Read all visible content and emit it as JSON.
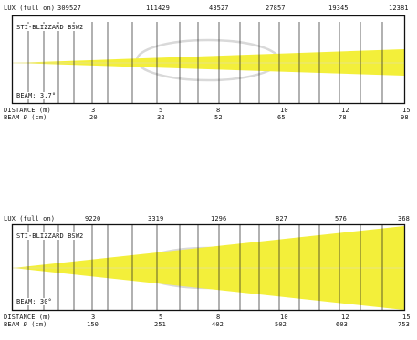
{
  "colors": {
    "beam": "#f3ef3a",
    "frame": "#111111",
    "watermark": "#d9d9d9"
  },
  "panels": [
    {
      "lux_label": "LUX (full on)",
      "lux": [
        "309527",
        "111429",
        "43527",
        "27857",
        "19345",
        "12381"
      ],
      "title": "STI-BLIZZARD BSW2",
      "beam_label": "BEAM: 3.7°",
      "beam_angle_deg": 3.7,
      "distance_label": "DISTANCE (m)",
      "distances": [
        "3",
        "5",
        "8",
        "10",
        "12",
        "15"
      ],
      "beam_label_row": "BEAM  Ø  (cm)",
      "beam_cm": [
        "20",
        "32",
        "52",
        "65",
        "78",
        "98"
      ]
    },
    {
      "lux_label": "LUX (full on)",
      "lux": [
        "9220",
        "3319",
        "1296",
        "827",
        "576",
        "368"
      ],
      "title": "STI-BLIZZARD BSW2",
      "beam_label": "BEAM: 30°",
      "beam_angle_deg": 30,
      "distance_label": "DISTANCE (m)",
      "distances": [
        "3",
        "5",
        "8",
        "10",
        "12",
        "15"
      ],
      "beam_label_row": "BEAM  Ø  (cm)",
      "beam_cm": [
        "150",
        "251",
        "402",
        "502",
        "603",
        "753"
      ]
    }
  ]
}
